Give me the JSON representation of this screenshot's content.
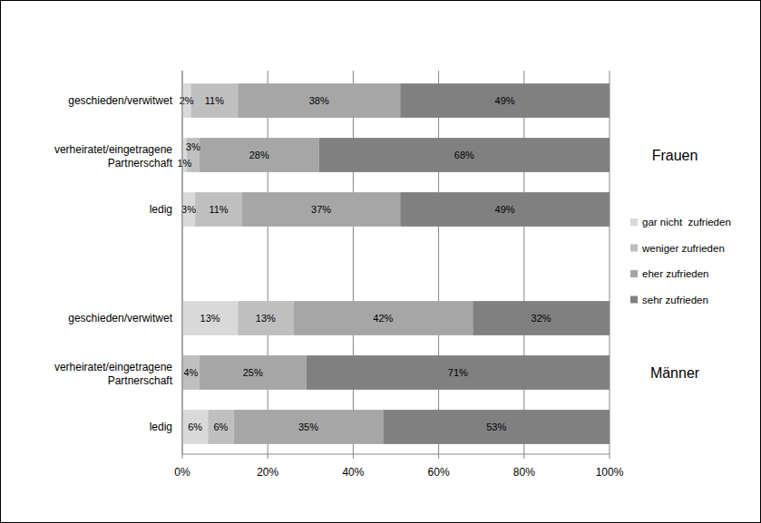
{
  "chart_data": {
    "type": "bar",
    "orientation": "horizontal",
    "stacked": true,
    "data_labels": true,
    "grid": true,
    "legend": "right",
    "categories": [
      "geschieden/verwitwet",
      "verheiratet/eingetragene Partnerschaft",
      "ledig",
      null,
      "geschieden/verwitwet",
      "verheiratet/eingetragene Partnerschaft",
      "ledig"
    ],
    "group_labels": [
      "Frauen",
      "Männer"
    ],
    "xlim": [
      0,
      100
    ],
    "xticks": [
      {
        "value": 0,
        "label": "0%"
      },
      {
        "value": 20,
        "label": "20%"
      },
      {
        "value": 40,
        "label": "40%"
      },
      {
        "value": 60,
        "label": "60%"
      },
      {
        "value": 80,
        "label": "80%"
      },
      {
        "value": 100,
        "label": "100%"
      }
    ],
    "series": [
      {
        "name": "gar nicht  zufrieden",
        "color": "#d9d9d9",
        "values": [
          2,
          1,
          3,
          null,
          13,
          0,
          6
        ],
        "value_labels": [
          "2%",
          "1%",
          "3%",
          null,
          "13%",
          null,
          "6%"
        ]
      },
      {
        "name": "weniger zufrieden",
        "color": "#bfbfbf",
        "values": [
          11,
          3,
          11,
          null,
          13,
          4,
          6
        ],
        "value_labels": [
          "11%",
          "3%",
          "11%",
          null,
          "13%",
          "4%",
          "6%"
        ]
      },
      {
        "name": "eher zufrieden",
        "color": "#a6a6a6",
        "values": [
          38,
          28,
          37,
          null,
          42,
          25,
          35
        ],
        "value_labels": [
          "38%",
          "28%",
          "37%",
          null,
          "42%",
          "25%",
          "35%"
        ]
      },
      {
        "name": "sehr zufrieden",
        "color": "#808080",
        "values": [
          49,
          68,
          49,
          null,
          32,
          71,
          53
        ],
        "value_labels": [
          "49%",
          "68%",
          "49%",
          null,
          "32%",
          "71%",
          "53%"
        ]
      }
    ]
  }
}
